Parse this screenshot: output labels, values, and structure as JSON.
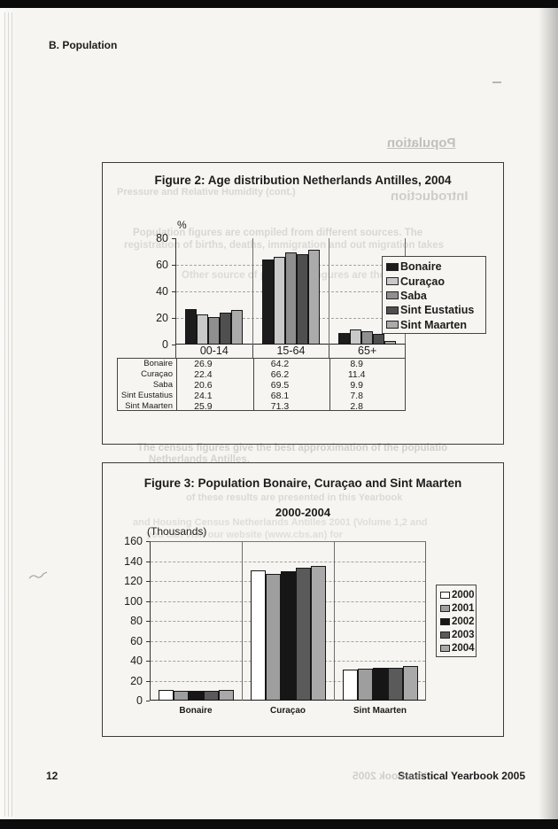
{
  "page": {
    "header": "B. Population",
    "page_number": "12",
    "footer": "Statistical Yearbook 2005"
  },
  "chart_data": [
    {
      "type": "bar",
      "title": "Figure 2: Age distribution Netherlands Antilles, 2004",
      "ylabel": "%",
      "ylim": [
        0,
        80
      ],
      "ytick_step": 20,
      "grid": "dashed-horizontal",
      "legend_position": "right",
      "has_data_table": true,
      "categories": [
        "00-14",
        "15-64",
        "65+"
      ],
      "series": [
        {
          "name": "Bonaire",
          "color": "#1c1c1c",
          "values": [
            26.9,
            64.2,
            8.9
          ]
        },
        {
          "name": "Curaçao",
          "color": "#c9c9c9",
          "values": [
            22.4,
            66.2,
            11.4
          ]
        },
        {
          "name": "Saba",
          "color": "#8f8f8f",
          "values": [
            20.6,
            69.5,
            9.9
          ]
        },
        {
          "name": "Sint Eustatius",
          "color": "#4f4f4f",
          "values": [
            24.1,
            68.1,
            7.8
          ]
        },
        {
          "name": "Sint Maarten",
          "color": "#ababab",
          "values": [
            25.9,
            71.3,
            2.8
          ]
        }
      ]
    },
    {
      "type": "bar",
      "title": "Figure 3: Population Bonaire, Curaçao and Sint Maarten",
      "subtitle": "2000-2004",
      "ylabel": "(Thousands)",
      "ylim": [
        0,
        160
      ],
      "ytick_step": 20,
      "grid": "dashed-horizontal",
      "legend_position": "right",
      "has_data_table": false,
      "categories": [
        "Bonaire",
        "Curaçao",
        "Sint Maarten"
      ],
      "series": [
        {
          "name": "2000",
          "color": "#ffffff",
          "values": [
            11,
            131,
            31
          ]
        },
        {
          "name": "2001",
          "color": "#9e9e9e",
          "values": [
            10,
            127,
            32
          ]
        },
        {
          "name": "2002",
          "color": "#161616",
          "values": [
            10,
            130,
            33
          ]
        },
        {
          "name": "2003",
          "color": "#5a5a5a",
          "values": [
            10,
            133,
            33
          ]
        },
        {
          "name": "2004",
          "color": "#a9a9a9",
          "values": [
            11,
            135,
            35
          ]
        }
      ]
    }
  ],
  "ghost_text": {
    "population_mirrored": "Population",
    "introduction_mirrored": "Introduction",
    "humidity_line": "Pressure and Relative Humidity (cont.)",
    "para_line1": "Population figures are compiled from different sources. The",
    "para_line2": "registration of births, deaths, immigration and out migration takes",
    "para_line3": "Other source of population figures are the population",
    "census_line1": "The census figures give the best approximation of the populatio",
    "census_line2": "Netherlands Antilles.",
    "fig3_line1": "of these results are presented in this Yearbook",
    "fig3_line2": "and Housing Census Netherlands Antilles 2001 (Volume 1,2 and",
    "fig3_line3": "you can visit our website (www.cbs.an) for",
    "yearbook_mirrored": "Yearbook 2005"
  }
}
